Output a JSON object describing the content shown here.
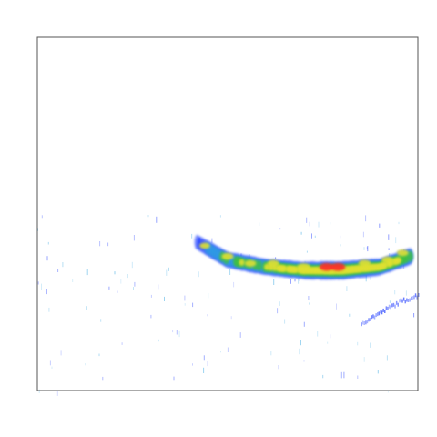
{
  "chart_data": {
    "type": "heatmap",
    "title": "",
    "xlabel": "",
    "ylabel": "",
    "grid": false,
    "legend": "none",
    "axes_visible": false,
    "colormap": [
      "#1f3cff",
      "#2fa3e0",
      "#3fbf3f",
      "#e0e030",
      "#ff2a2a"
    ],
    "xlim": [
      0,
      1
    ],
    "ylim": [
      0,
      1
    ],
    "band": {
      "description_x": [
        0.42,
        0.5,
        0.6,
        0.7,
        0.8,
        0.9,
        0.98
      ],
      "center_y": [
        0.42,
        0.37,
        0.35,
        0.34,
        0.34,
        0.35,
        0.38
      ],
      "intensity": [
        0.3,
        0.55,
        0.6,
        0.75,
        1.0,
        0.7,
        0.6
      ]
    },
    "hotspots": [
      {
        "x": 0.44,
        "y": 0.41,
        "intensity": 0.55
      },
      {
        "x": 0.5,
        "y": 0.38,
        "intensity": 0.7
      },
      {
        "x": 0.56,
        "y": 0.36,
        "intensity": 0.65
      },
      {
        "x": 0.62,
        "y": 0.36,
        "intensity": 0.7
      },
      {
        "x": 0.7,
        "y": 0.35,
        "intensity": 0.85
      },
      {
        "x": 0.76,
        "y": 0.35,
        "intensity": 0.95
      },
      {
        "x": 0.79,
        "y": 0.35,
        "intensity": 1.0
      },
      {
        "x": 0.86,
        "y": 0.36,
        "intensity": 0.75
      },
      {
        "x": 0.92,
        "y": 0.37,
        "intensity": 0.7
      },
      {
        "x": 0.96,
        "y": 0.39,
        "intensity": 0.65
      }
    ],
    "secondary_trace": {
      "x": [
        0.85,
        0.9,
        0.95,
        1.0
      ],
      "y": [
        0.19,
        0.22,
        0.25,
        0.27
      ],
      "intensity": 0.25
    }
  }
}
